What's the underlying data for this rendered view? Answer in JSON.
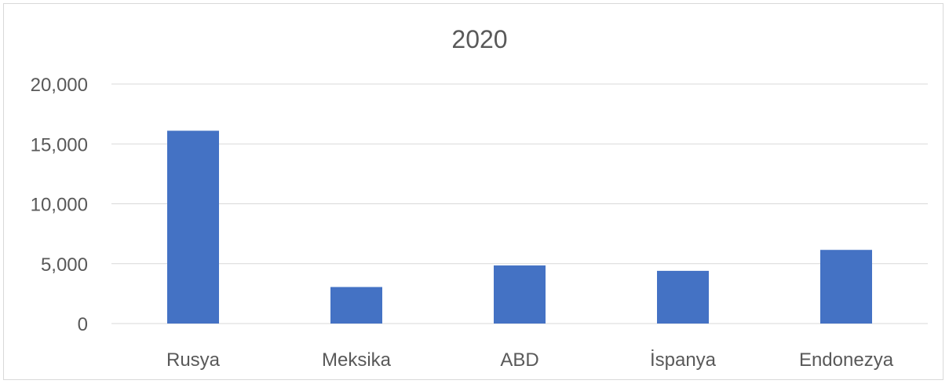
{
  "chart_data": {
    "type": "bar",
    "title": "2020",
    "categories": [
      "Rusya",
      "Meksika",
      "ABD",
      "İspanya",
      "Endonezya"
    ],
    "values": [
      16100,
      3050,
      4850,
      4400,
      6150
    ],
    "y_ticks": [
      "0",
      "5,000",
      "10,000",
      "15,000",
      "20,000"
    ],
    "ylim": [
      0,
      20000
    ],
    "grid": true,
    "legend": "none",
    "bar_color": "#4472c4",
    "grid_color": "#d9d9d9"
  }
}
